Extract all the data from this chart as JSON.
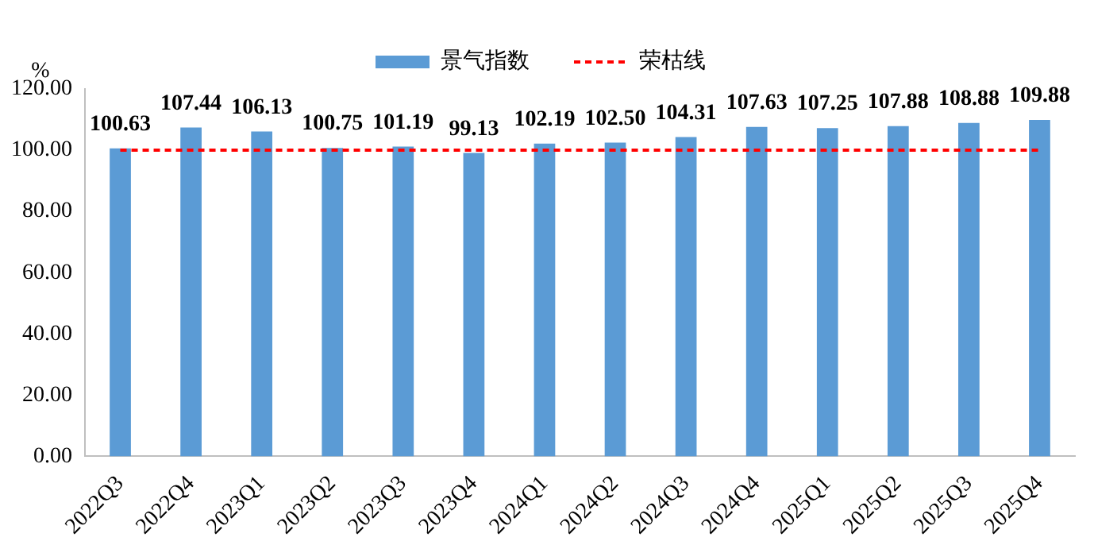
{
  "chart_data": {
    "type": "bar",
    "ylabel": "%",
    "categories": [
      "2022Q3",
      "2022Q4",
      "2023Q1",
      "2023Q2",
      "2023Q3",
      "2023Q4",
      "2024Q1",
      "2024Q2",
      "2024Q3",
      "2024Q4",
      "2025Q1",
      "2025Q2",
      "2025Q3",
      "2025Q4"
    ],
    "series": [
      {
        "name": "景气指数",
        "color": "#5b9bd5",
        "values": [
          100.63,
          107.44,
          106.13,
          100.75,
          101.19,
          99.13,
          102.19,
          102.5,
          104.31,
          107.63,
          107.25,
          107.88,
          108.88,
          109.88
        ]
      }
    ],
    "ref_lines": [
      {
        "axis": "y",
        "value": 100,
        "label": "荣枯线",
        "color": "#ff0000",
        "line_style": "dashed"
      }
    ],
    "ylim": [
      0,
      120
    ],
    "yticks": [
      {
        "value": 0,
        "label": "0.00"
      },
      {
        "value": 20,
        "label": "20.00"
      },
      {
        "value": 40,
        "label": "40.00"
      },
      {
        "value": 60,
        "label": "60.00"
      },
      {
        "value": 80,
        "label": "80.00"
      },
      {
        "value": 100,
        "label": "100.00"
      },
      {
        "value": 120,
        "label": "120.00"
      }
    ],
    "value_labels": [
      "100.63",
      "107.44",
      "106.13",
      "100.75",
      "101.19",
      "99.13",
      "102.19",
      "102.50",
      "104.31",
      "107.63",
      "107.25",
      "107.88",
      "108.88",
      "109.88"
    ],
    "grid": false,
    "legend": "top"
  }
}
